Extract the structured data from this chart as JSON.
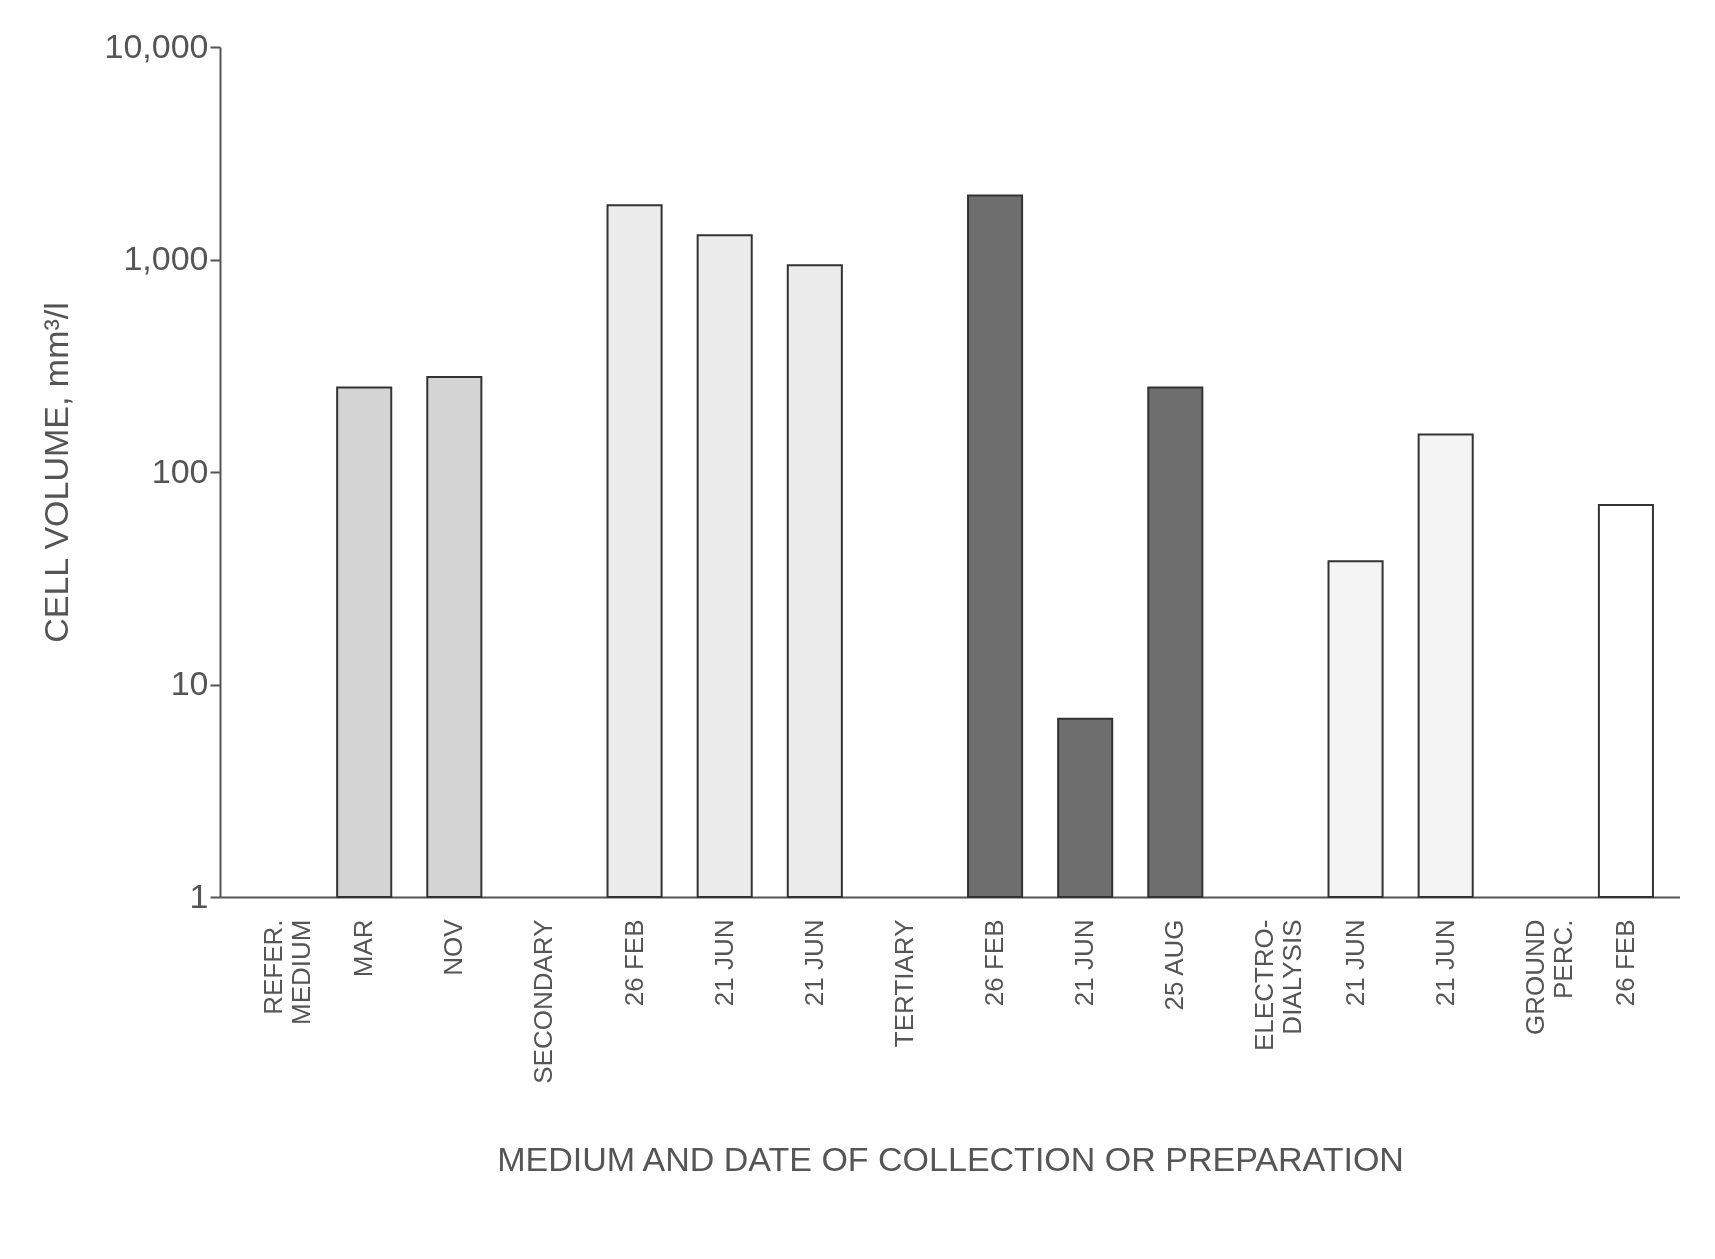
{
  "chart_data": {
    "type": "bar",
    "xlabel": "MEDIUM AND DATE OF COLLECTION OR PREPARATION",
    "ylabel": "CELL VOLUME,  mm³/l",
    "categories": [
      "REFER.\nMEDIUM",
      "MAR",
      "NOV",
      "SECONDARY",
      "26 FEB",
      "21 JUN",
      "21 JUN",
      "TERTIARY",
      "26 FEB",
      "21 JUN",
      "25 AUG",
      "ELECTRO-\nDIALYSIS",
      "21 JUN",
      "21 JUN",
      "GROUND\nPERC.",
      "26 FEB"
    ],
    "values": [
      null,
      250,
      280,
      null,
      1800,
      1300,
      940,
      null,
      2000,
      6.9,
      250,
      null,
      38,
      150,
      null,
      70
    ],
    "colors": [
      null,
      "#d4d4d4",
      "#d4d4d4",
      null,
      "#ececec",
      "#ececec",
      "#ececec",
      null,
      "#6e6e6e",
      "#6e6e6e",
      "#6e6e6e",
      null,
      "#f4f4f4",
      "#f4f4f4",
      null,
      "#ffffff"
    ],
    "log": "y",
    "ylim": [
      1,
      10000
    ],
    "yticks": [
      1,
      10,
      100,
      {
        "value": 1000,
        "label": "1,000"
      },
      {
        "value": 10000,
        "label": "10,000"
      }
    ],
    "grid": false
  }
}
